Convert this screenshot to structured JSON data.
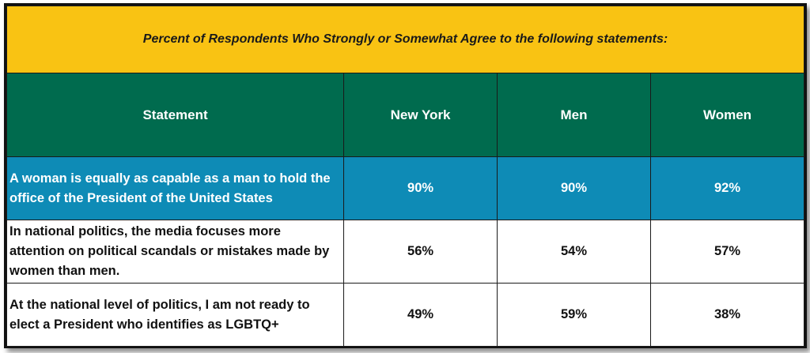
{
  "title": "Percent of Respondents Who Strongly or Somewhat Agree to the following statements:",
  "headers": [
    "Statement",
    "New York",
    "Men",
    "Women"
  ],
  "rows": [
    {
      "statement": " A woman is equally as capable as a man to hold the office of the President of the United States",
      "values": [
        "90%",
        "90%",
        "92%"
      ]
    },
    {
      "statement": " In national politics, the media focuses more attention on political scandals or mistakes made by women than men.",
      "values": [
        "56%",
        "54%",
        "57%"
      ]
    },
    {
      "statement": " At the national level of politics, I am not ready to elect a President who identifies as LGBTQ+",
      "values": [
        "49%",
        "59%",
        "38%"
      ]
    }
  ],
  "colors": {
    "title_bg": "#f9c313",
    "header_bg": "#006b4e",
    "highlight_row_bg": "#0e8bb6"
  }
}
